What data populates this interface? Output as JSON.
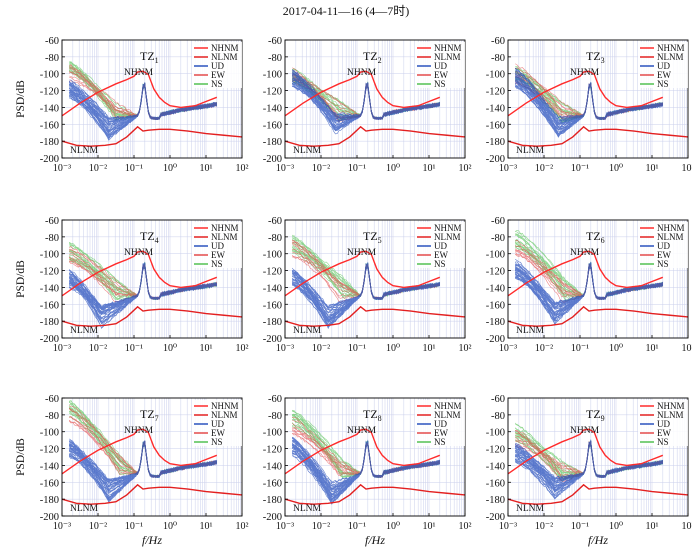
{
  "figure": {
    "title": "2017-04-11—16 (4—7时)",
    "x_axis_label": "f/Hz",
    "y_axis_label": "PSD/dB"
  },
  "colors": {
    "NHNM": "#ff2b2b",
    "NLNM": "#e32020",
    "UD": "#2a52be",
    "EW": "#e34a4a",
    "NS": "#52c152",
    "grid": "#9fa8dc"
  },
  "legend_entries": [
    {
      "key": "NHNM",
      "label": "NHNM"
    },
    {
      "key": "NLNM",
      "label": "NLNM"
    },
    {
      "key": "UD",
      "label": "UD"
    },
    {
      "key": "EW",
      "label": "EW"
    },
    {
      "key": "NS",
      "label": "NS"
    }
  ],
  "chart_data": [
    {
      "type": "line",
      "title": "TZ1",
      "station": "TZ",
      "subscript": "1",
      "xscale": "log",
      "xlim": [
        0.001,
        100
      ],
      "ylim": [
        -200,
        -60
      ],
      "xticks": [
        "10⁻³",
        "10⁻²",
        "10⁻¹",
        "10⁰",
        "10¹",
        "10²"
      ],
      "yticks": [
        -200,
        -180,
        -160,
        -140,
        -120,
        -100,
        -80,
        -60
      ],
      "curve_labels": [
        "NHNM",
        "NLNM"
      ],
      "grid": true,
      "legend_position": "top-right",
      "series": [
        {
          "name": "UD",
          "start": -118,
          "low": -170,
          "lowx": -1.7
        },
        {
          "name": "EW",
          "start": -100,
          "low": -150,
          "lowx": -1.5
        },
        {
          "name": "NS",
          "start": -95,
          "low": -148,
          "lowx": -1.5
        }
      ]
    },
    {
      "type": "line",
      "title": "TZ2",
      "station": "TZ",
      "subscript": "2",
      "xscale": "log",
      "xlim": [
        0.001,
        100
      ],
      "ylim": [
        -200,
        -60
      ],
      "xticks": [
        "10⁻³",
        "10⁻²",
        "10⁻¹",
        "10⁰",
        "10¹",
        "10²"
      ],
      "yticks": [
        -200,
        -180,
        -160,
        -140,
        -120,
        -100,
        -80,
        -60
      ],
      "curve_labels": [
        "NHNM",
        "NLNM"
      ],
      "grid": true,
      "legend_position": "top-right",
      "series": [
        {
          "name": "UD",
          "start": -105,
          "low": -165,
          "lowx": -1.6
        },
        {
          "name": "EW",
          "start": -100,
          "low": -150,
          "lowx": -1.5
        },
        {
          "name": "NS",
          "start": -100,
          "low": -148,
          "lowx": -1.5
        }
      ]
    },
    {
      "type": "line",
      "title": "TZ3",
      "station": "TZ",
      "subscript": "3",
      "xscale": "log",
      "xlim": [
        0.001,
        100
      ],
      "ylim": [
        -200,
        -60
      ],
      "xticks": [
        "10⁻³",
        "10⁻²",
        "10⁻¹",
        "10⁰",
        "10¹",
        "10²"
      ],
      "yticks": [
        -200,
        -180,
        -160,
        -140,
        -120,
        -100,
        -80,
        -60
      ],
      "curve_labels": [
        "NHNM",
        "NLNM"
      ],
      "grid": true,
      "legend_position": "top-right",
      "series": [
        {
          "name": "UD",
          "start": -105,
          "low": -168,
          "lowx": -1.6
        },
        {
          "name": "EW",
          "start": -100,
          "low": -150,
          "lowx": -1.5
        },
        {
          "name": "NS",
          "start": -102,
          "low": -150,
          "lowx": -1.5
        }
      ]
    },
    {
      "type": "line",
      "title": "TZ4",
      "station": "TZ",
      "subscript": "4",
      "xscale": "log",
      "xlim": [
        0.001,
        100
      ],
      "ylim": [
        -200,
        -60
      ],
      "xticks": [
        "10⁻³",
        "10⁻²",
        "10⁻¹",
        "10⁰",
        "10¹",
        "10²"
      ],
      "yticks": [
        -200,
        -180,
        -160,
        -140,
        -120,
        -100,
        -80,
        -60
      ],
      "curve_labels": [
        "NHNM",
        "NLNM"
      ],
      "grid": true,
      "legend_position": "top-right",
      "series": [
        {
          "name": "UD",
          "start": -130,
          "low": -180,
          "lowx": -1.9
        },
        {
          "name": "EW",
          "start": -100,
          "low": -150,
          "lowx": -1.5
        },
        {
          "name": "NS",
          "start": -98,
          "low": -148,
          "lowx": -1.5
        }
      ]
    },
    {
      "type": "line",
      "title": "TZ5",
      "station": "TZ",
      "subscript": "5",
      "xscale": "log",
      "xlim": [
        0.001,
        100
      ],
      "ylim": [
        -200,
        -60
      ],
      "xticks": [
        "10⁻³",
        "10⁻²",
        "10⁻¹",
        "10⁰",
        "10¹",
        "10²"
      ],
      "yticks": [
        -200,
        -180,
        -160,
        -140,
        -120,
        -100,
        -80,
        -60
      ],
      "curve_labels": [
        "NHNM",
        "NLNM"
      ],
      "grid": true,
      "legend_position": "top-right",
      "series": [
        {
          "name": "UD",
          "start": -128,
          "low": -180,
          "lowx": -1.8
        },
        {
          "name": "EW",
          "start": -95,
          "low": -150,
          "lowx": -1.5
        },
        {
          "name": "NS",
          "start": -88,
          "low": -145,
          "lowx": -1.4
        }
      ]
    },
    {
      "type": "line",
      "title": "TZ6",
      "station": "TZ",
      "subscript": "6",
      "xscale": "log",
      "xlim": [
        0.001,
        100
      ],
      "ylim": [
        -200,
        -60
      ],
      "xticks": [
        "10⁻³",
        "10⁻²",
        "10⁻¹",
        "10⁰",
        "10¹",
        "10²"
      ],
      "yticks": [
        -200,
        -180,
        -160,
        -140,
        -120,
        -100,
        -80,
        -60
      ],
      "curve_labels": [
        "NHNM",
        "NLNM"
      ],
      "grid": true,
      "legend_position": "top-right",
      "series": [
        {
          "name": "UD",
          "start": -118,
          "low": -175,
          "lowx": -1.7
        },
        {
          "name": "EW",
          "start": -95,
          "low": -150,
          "lowx": -1.5
        },
        {
          "name": "NS",
          "start": -82,
          "low": -148,
          "lowx": -1.4
        }
      ]
    },
    {
      "type": "line",
      "title": "TZ7",
      "station": "TZ",
      "subscript": "7",
      "xscale": "log",
      "xlim": [
        0.001,
        100
      ],
      "ylim": [
        -200,
        -60
      ],
      "xticks": [
        "10⁻³",
        "10⁻²",
        "10⁻¹",
        "10⁰",
        "10¹",
        "10²"
      ],
      "yticks": [
        -200,
        -180,
        -160,
        -140,
        -120,
        -100,
        -80,
        -60
      ],
      "curve_labels": [
        "NHNM",
        "NLNM"
      ],
      "grid": true,
      "legend_position": "top-right",
      "series": [
        {
          "name": "UD",
          "start": -120,
          "low": -175,
          "lowx": -1.7
        },
        {
          "name": "EW",
          "start": -78,
          "low": -145,
          "lowx": -1.4
        },
        {
          "name": "NS",
          "start": -72,
          "low": -145,
          "lowx": -1.4
        }
      ]
    },
    {
      "type": "line",
      "title": "TZ8",
      "station": "TZ",
      "subscript": "8",
      "xscale": "log",
      "xlim": [
        0.001,
        100
      ],
      "ylim": [
        -200,
        -60
      ],
      "xticks": [
        "10⁻³",
        "10⁻²",
        "10⁻¹",
        "10⁰",
        "10¹",
        "10²"
      ],
      "yticks": [
        -200,
        -180,
        -160,
        -140,
        -120,
        -100,
        -80,
        -60
      ],
      "curve_labels": [
        "NHNM",
        "NLNM"
      ],
      "grid": true,
      "legend_position": "top-right",
      "series": [
        {
          "name": "UD",
          "start": -118,
          "low": -178,
          "lowx": -1.7
        },
        {
          "name": "EW",
          "start": -92,
          "low": -150,
          "lowx": -1.5
        },
        {
          "name": "NS",
          "start": -85,
          "low": -148,
          "lowx": -1.4
        }
      ]
    },
    {
      "type": "line",
      "title": "TZ9",
      "station": "TZ",
      "subscript": "9",
      "xscale": "log",
      "xlim": [
        0.001,
        100
      ],
      "ylim": [
        -200,
        -60
      ],
      "xticks": [
        "10⁻³",
        "10⁻²",
        "10⁻¹",
        "10⁰",
        "10¹",
        "10²"
      ],
      "yticks": [
        -200,
        -180,
        -160,
        -140,
        -120,
        -100,
        -80,
        -60
      ],
      "curve_labels": [
        "NHNM",
        "NLNM"
      ],
      "grid": true,
      "legend_position": "top-right",
      "series": [
        {
          "name": "UD",
          "start": -125,
          "low": -172,
          "lowx": -1.7
        },
        {
          "name": "EW",
          "start": -108,
          "low": -155,
          "lowx": -1.5
        },
        {
          "name": "NS",
          "start": -100,
          "low": -152,
          "lowx": -1.5
        }
      ]
    }
  ]
}
